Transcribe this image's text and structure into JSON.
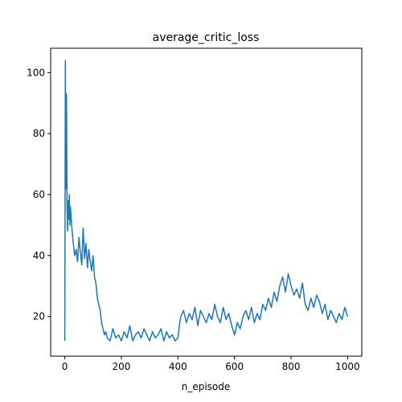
{
  "chart_data": {
    "type": "line",
    "title": "average_critic_loss",
    "xlabel": "n_episode",
    "ylabel": "",
    "xlim": [
      -50,
      1050
    ],
    "ylim": [
      7,
      108
    ],
    "xticks": [
      0,
      200,
      400,
      600,
      800,
      1000
    ],
    "yticks": [
      20,
      40,
      60,
      80,
      100
    ],
    "grid": false,
    "legend": "none",
    "series": [
      {
        "color": "#1f77b4",
        "x": [
          0,
          2,
          4,
          6,
          8,
          10,
          12,
          14,
          16,
          18,
          20,
          25,
          30,
          35,
          40,
          45,
          50,
          55,
          60,
          65,
          70,
          75,
          80,
          85,
          90,
          95,
          100,
          105,
          110,
          115,
          120,
          125,
          130,
          135,
          140,
          145,
          150,
          160,
          170,
          180,
          190,
          200,
          210,
          220,
          230,
          240,
          250,
          260,
          270,
          280,
          290,
          300,
          310,
          320,
          330,
          340,
          350,
          360,
          370,
          380,
          390,
          400,
          405,
          410,
          420,
          430,
          440,
          450,
          460,
          470,
          480,
          490,
          500,
          510,
          520,
          530,
          540,
          550,
          560,
          570,
          580,
          590,
          600,
          610,
          620,
          630,
          640,
          650,
          660,
          670,
          680,
          690,
          700,
          710,
          720,
          730,
          740,
          750,
          760,
          770,
          780,
          790,
          800,
          810,
          820,
          830,
          840,
          850,
          860,
          870,
          880,
          890,
          900,
          910,
          920,
          930,
          940,
          950,
          960,
          970,
          980,
          990,
          1000
        ],
        "values": [
          12,
          104,
          62,
          93,
          55,
          48,
          58,
          52,
          60,
          50,
          56,
          49,
          44,
          40,
          42,
          38,
          46,
          41,
          37,
          49,
          39,
          44,
          36,
          42,
          38,
          35,
          40,
          33,
          31,
          26,
          24,
          22,
          18,
          16,
          14,
          15,
          13,
          12,
          16,
          13,
          14,
          12,
          15,
          13,
          17,
          12,
          14,
          15,
          13,
          16,
          14,
          12,
          15,
          13,
          14,
          16,
          12,
          15,
          13,
          14,
          12,
          13,
          17,
          20,
          22,
          18,
          21,
          19,
          23,
          17,
          22,
          20,
          18,
          21,
          19,
          24,
          20,
          18,
          23,
          19,
          21,
          17,
          14,
          18,
          16,
          20,
          22,
          19,
          23,
          18,
          21,
          19,
          24,
          22,
          26,
          23,
          28,
          25,
          30,
          33,
          28,
          34,
          30,
          27,
          29,
          26,
          31,
          24,
          22,
          26,
          23,
          27,
          25,
          21,
          24,
          19,
          22,
          20,
          18,
          21,
          19,
          23,
          20
        ]
      }
    ]
  }
}
